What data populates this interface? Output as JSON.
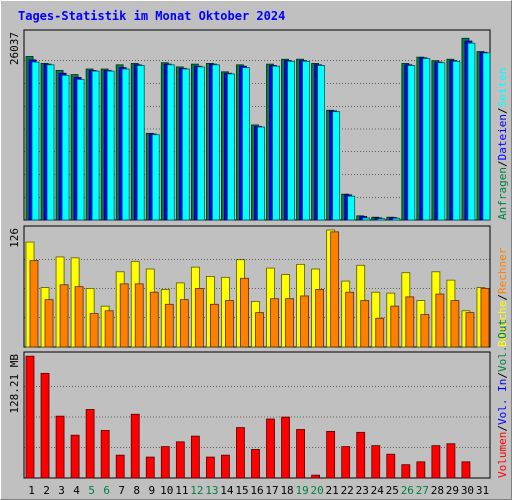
{
  "chart_data": {
    "title": "Tages-Statistik im Monat Oktober 2024",
    "colors": {
      "background": "#c0c0c0",
      "title": "#0000ff",
      "hits": "#008040",
      "files": "#0000ff",
      "pages": "#00ffff",
      "visits": "#ffff00",
      "sites": "#ff8000",
      "kbytes": "#ff0000",
      "in": "#0000ff",
      "out": "#008040",
      "weekend_label": "#008040",
      "weekday_label": "#000000"
    },
    "days": [
      "1",
      "2",
      "3",
      "4",
      "5",
      "6",
      "7",
      "8",
      "9",
      "10",
      "11",
      "12",
      "13",
      "14",
      "15",
      "16",
      "17",
      "18",
      "19",
      "20",
      "21",
      "22",
      "23",
      "24",
      "25",
      "26",
      "27",
      "28",
      "29",
      "30",
      "31"
    ],
    "weekend_days": [
      "5",
      "6",
      "12",
      "13",
      "19",
      "20",
      "26",
      "27"
    ],
    "panels": [
      {
        "type": "bar",
        "max_label": "26037",
        "max": 26037,
        "legend": [
          {
            "text": "Anfragen",
            "color": "#008040"
          },
          {
            "text": "Dateien",
            "color": "#0000ff"
          },
          {
            "text": "Seiten",
            "color": "#00ffff"
          }
        ],
        "series": [
          {
            "name": "Anfragen",
            "values": [
              23400,
              22400,
              21400,
              20800,
              21600,
              21600,
              22200,
              22400,
              12400,
              22500,
              21900,
              22300,
              22400,
              21200,
              22200,
              13600,
              22300,
              23000,
              23000,
              22400,
              15700,
              3700,
              600,
              400,
              400,
              22400,
              23300,
              22800,
              23000,
              26000,
              24100
            ]
          },
          {
            "name": "Dateien",
            "values": [
              22900,
              22300,
              21000,
              20400,
              21400,
              21400,
              21800,
              22200,
              12300,
              22300,
              21700,
              22000,
              22300,
              21000,
              22000,
              13400,
              22100,
              22800,
              22800,
              22200,
              15600,
              3600,
              500,
              300,
              350,
              22200,
              23200,
              22600,
              22800,
              25600,
              24000
            ]
          },
          {
            "name": "Seiten",
            "values": [
              22600,
              22200,
              20700,
              20100,
              21300,
              21300,
              21600,
              22100,
              12200,
              22200,
              21600,
              21900,
              22200,
              20900,
              21800,
              13300,
              22000,
              22700,
              22700,
              22100,
              15500,
              3400,
              300,
              200,
              250,
              22100,
              23100,
              22500,
              22700,
              25300,
              23900
            ]
          }
        ]
      },
      {
        "type": "bar",
        "max_label": "126",
        "max": 126,
        "legend": [
          {
            "text": "Besuche",
            "color": "#ffff00"
          },
          {
            "text": "Rechner",
            "color": "#ff8000"
          }
        ],
        "series": [
          {
            "name": "Besuche",
            "values": [
              113,
              64,
              97,
              96,
              63,
              44,
              81,
              92,
              84,
              62,
              69,
              86,
              76,
              75,
              94,
              49,
              85,
              78,
              89,
              84,
              126,
              71,
              88,
              59,
              58,
              80,
              50,
              81,
              72,
              39,
              64
            ]
          },
          {
            "name": "Rechner",
            "values": [
              93,
              51,
              67,
              65,
              36,
              39,
              68,
              68,
              59,
              46,
              51,
              63,
              46,
              50,
              74,
              37,
              52,
              52,
              55,
              62,
              124,
              59,
              50,
              31,
              44,
              54,
              35,
              57,
              50,
              37,
              63
            ]
          }
        ]
      },
      {
        "type": "bar",
        "max_label": "128.21 MB",
        "max": 128.21,
        "legend": [
          {
            "text": "Volumen",
            "color": "#ff0000"
          },
          {
            "text": "Vol. In",
            "color": "#0000ff"
          },
          {
            "text": "Vol. Out",
            "color": "#008040"
          }
        ],
        "series": [
          {
            "name": "Volumen",
            "values": [
              128,
              110,
              65,
              45,
              72,
              50,
              24,
              67,
              22,
              33,
              38,
              44,
              22,
              24,
              53,
              30,
              62,
              64,
              51,
              3,
              49,
              33,
              48,
              34,
              25,
              14,
              17,
              34,
              36,
              17,
              0
            ]
          }
        ]
      }
    ]
  }
}
